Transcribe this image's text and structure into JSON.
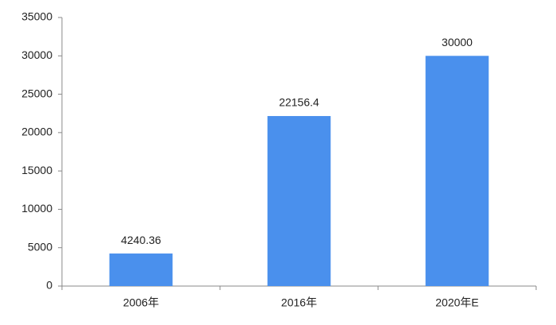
{
  "chart_data": {
    "type": "bar",
    "categories": [
      "2006年",
      "2016年",
      "2020年E"
    ],
    "values": [
      4240.36,
      22156.4,
      30000
    ],
    "color": "#4a90ed",
    "ylim": [
      0,
      35000
    ],
    "yticks": [
      0,
      5000,
      10000,
      15000,
      20000,
      25000,
      30000,
      35000
    ],
    "grid": false
  }
}
